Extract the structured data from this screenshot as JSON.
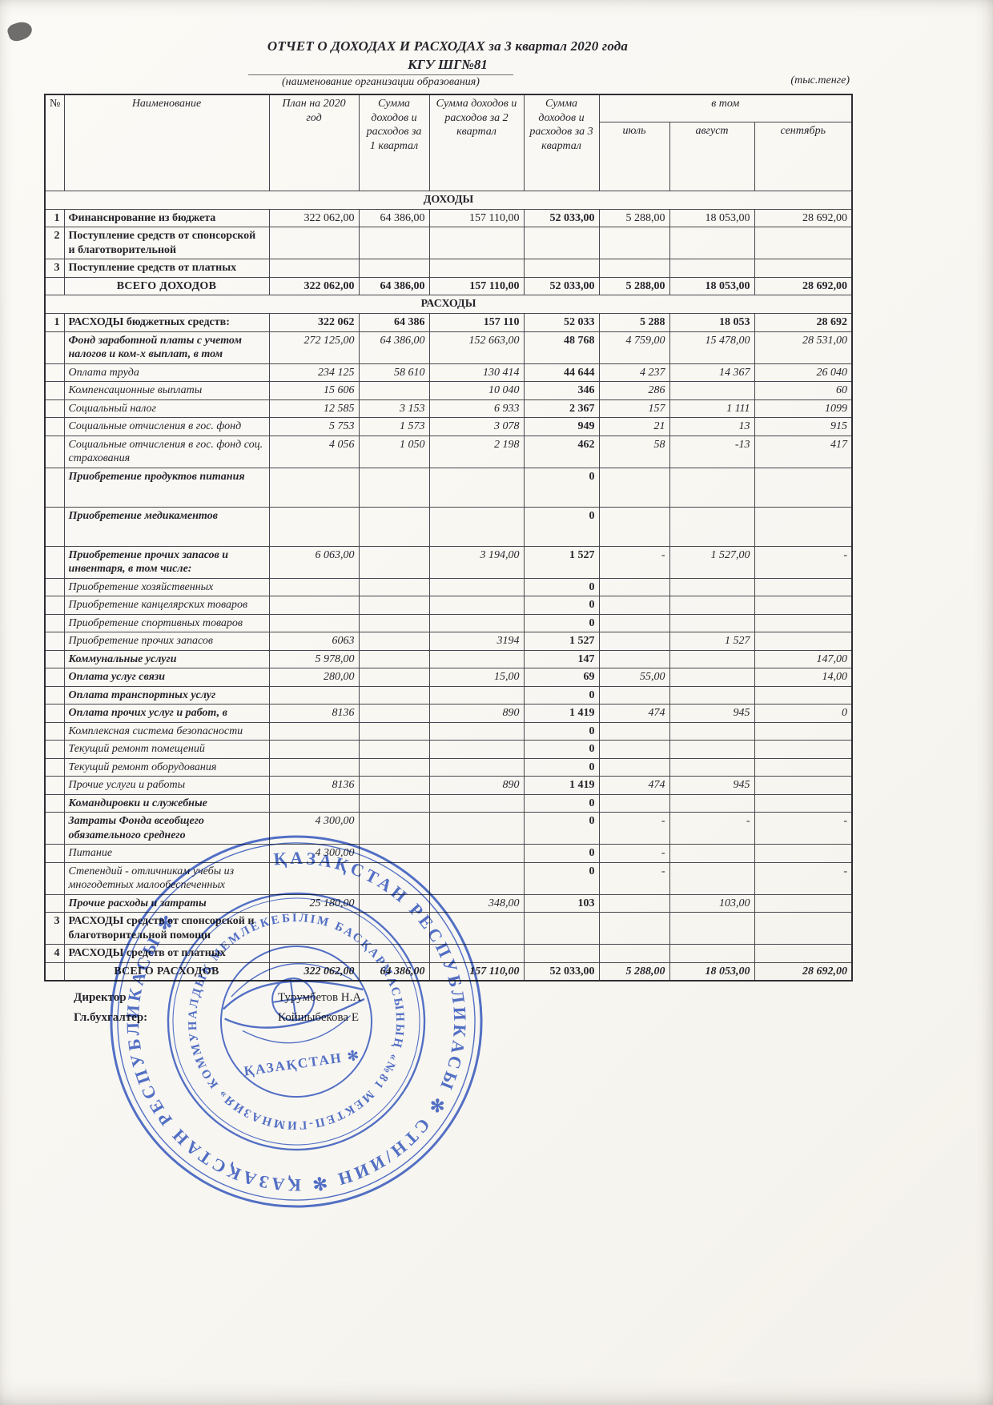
{
  "doc": {
    "title": "ОТЧЕТ О ДОХОДАХ И РАСХОДАХ за 3 квартал 2020 года",
    "org": "КГУ ШГ№81",
    "org_caption": "(наименование организации образования)",
    "units": "(тыс.тенге)"
  },
  "table": {
    "no": "№",
    "h": {
      "name": "Наименование",
      "plan": "План на 2020 год",
      "q1": "Сумма доходов и расходов за 1 квартал",
      "q2": "Сумма доходов и расходов за 2 квартал",
      "q3": "Сумма доходов и расходов за 3 квартал",
      "group": "в том",
      "jul": "июль",
      "aug": "август",
      "sep": "сентябрь"
    },
    "rows": [
      {
        "type": "section",
        "label": "ДОХОДЫ"
      },
      {
        "n": "1",
        "label": "Финансирование из бюджета",
        "ls": "b",
        "vs": "",
        "v": [
          "322 062,00",
          "64 386,00",
          "157 110,00",
          "52 033,00",
          "5 288,00",
          "18 053,00",
          "28 692,00"
        ]
      },
      {
        "n": "2",
        "label": "Поступление средств от спонсорской и благотворительной",
        "ls": "b",
        "vs": "",
        "v": [
          "",
          "",
          "",
          "",
          "",
          "",
          ""
        ]
      },
      {
        "n": "3",
        "label": "Поступление средств от платных",
        "ls": "b",
        "vs": "",
        "v": [
          "",
          "",
          "",
          "",
          "",
          "",
          ""
        ]
      },
      {
        "type": "total",
        "label": "ВСЕГО ДОХОДОВ",
        "vs": "b",
        "v": [
          "322 062,00",
          "64 386,00",
          "157 110,00",
          "52 033,00",
          "5 288,00",
          "18 053,00",
          "28 692,00"
        ]
      },
      {
        "type": "section",
        "label": "РАСХОДЫ"
      },
      {
        "n": "1",
        "label": "РАСХОДЫ бюджетных средств:",
        "ls": "b",
        "vs": "b",
        "v": [
          "322 062",
          "64 386",
          "157 110",
          "52 033",
          "5 288",
          "18 053",
          "28 692"
        ]
      },
      {
        "label": "Фонд заработной платы с учетом налогов и ком-х выплат, в том",
        "ls": "bi",
        "vs": "i",
        "v": [
          "272 125,00",
          "64 386,00",
          "152 663,00",
          "48 768",
          "4 759,00",
          "15 478,00",
          "28 531,00"
        ]
      },
      {
        "label": "Оплата труда",
        "ls": "i",
        "vs": "i",
        "v": [
          "234 125",
          "58 610",
          "130 414",
          "44 644",
          "4 237",
          "14 367",
          "26 040"
        ]
      },
      {
        "label": "Компенсационные выплаты",
        "ls": "i",
        "vs": "i",
        "v": [
          "15 606",
          "",
          "10 040",
          "346",
          "286",
          "",
          "60"
        ]
      },
      {
        "label": "Социальный налог",
        "ls": "i",
        "vs": "i",
        "v": [
          "12 585",
          "3 153",
          "6 933",
          "2 367",
          "157",
          "1 111",
          "1099"
        ]
      },
      {
        "label": "Социальные отчисления в гос. фонд",
        "ls": "i",
        "vs": "i",
        "v": [
          "5 753",
          "1 573",
          "3 078",
          "949",
          "21",
          "13",
          "915"
        ]
      },
      {
        "label": "Социальные отчисления в гос. фонд соц. страхования",
        "ls": "i",
        "vs": "i",
        "v": [
          "4 056",
          "1 050",
          "2 198",
          "462",
          "58",
          "-13",
          "417"
        ]
      },
      {
        "label": "Приобретение продуктов питания",
        "ls": "bi",
        "vs": "i",
        "tall": 1,
        "v": [
          "",
          "",
          "",
          "0",
          "",
          "",
          ""
        ]
      },
      {
        "label": "Приобретение медикаментов",
        "ls": "bi",
        "vs": "i",
        "tall": 1,
        "v": [
          "",
          "",
          "",
          "0",
          "",
          "",
          ""
        ]
      },
      {
        "label": "Приобретение прочих запасов и инвентаря, в том числе:",
        "ls": "bi",
        "vs": "i",
        "v": [
          "6 063,00",
          "",
          "3 194,00",
          "1 527",
          "-",
          "1 527,00",
          "-"
        ]
      },
      {
        "label": "Приобретение хозяйственных",
        "ls": "i",
        "vs": "i",
        "v": [
          "",
          "",
          "",
          "0",
          "",
          "",
          ""
        ]
      },
      {
        "label": "Приобретение канцелярских товаров",
        "ls": "i",
        "vs": "i",
        "v": [
          "",
          "",
          "",
          "0",
          "",
          "",
          ""
        ]
      },
      {
        "label": "Приобретение спортивных товаров",
        "ls": "i",
        "vs": "i",
        "v": [
          "",
          "",
          "",
          "0",
          "",
          "",
          ""
        ]
      },
      {
        "label": "Приобретение прочих запасов",
        "ls": "i",
        "vs": "i",
        "v": [
          "6063",
          "",
          "3194",
          "1 527",
          "",
          "1 527",
          ""
        ]
      },
      {
        "label": "Коммунальные услуги",
        "ls": "bi",
        "vs": "i",
        "v": [
          "5 978,00",
          "",
          "",
          "147",
          "",
          "",
          "147,00"
        ]
      },
      {
        "label": "Оплата услуг связи",
        "ls": "bi",
        "vs": "i",
        "v": [
          "280,00",
          "",
          "15,00",
          "69",
          "55,00",
          "",
          "14,00"
        ]
      },
      {
        "label": "Оплата транспортных услуг",
        "ls": "bi",
        "vs": "i",
        "v": [
          "",
          "",
          "",
          "0",
          "",
          "",
          ""
        ]
      },
      {
        "label": "Оплата прочих услуг и работ, в",
        "ls": "bi",
        "vs": "i",
        "v": [
          "8136",
          "",
          "890",
          "1 419",
          "474",
          "945",
          "0"
        ]
      },
      {
        "label": "Комплексная система безопасности",
        "ls": "i",
        "vs": "i",
        "v": [
          "",
          "",
          "",
          "0",
          "",
          "",
          ""
        ]
      },
      {
        "label": "Текущий ремонт помещений",
        "ls": "i",
        "vs": "i",
        "v": [
          "",
          "",
          "",
          "0",
          "",
          "",
          ""
        ]
      },
      {
        "label": "Текущий ремонт оборудования",
        "ls": "i",
        "vs": "i",
        "v": [
          "",
          "",
          "",
          "0",
          "",
          "",
          ""
        ]
      },
      {
        "label": "Прочие услуги и работы",
        "ls": "i",
        "vs": "i",
        "v": [
          "8136",
          "",
          "890",
          "1 419",
          "474",
          "945",
          ""
        ]
      },
      {
        "label": "Командировки и служебные",
        "ls": "bi",
        "vs": "i",
        "v": [
          "",
          "",
          "",
          "0",
          "",
          "",
          ""
        ]
      },
      {
        "label": "Затраты Фонда всеобщего обязательного среднего",
        "ls": "bi",
        "vs": "i",
        "v": [
          "4 300,00",
          "",
          "",
          "0",
          "-",
          "-",
          "-"
        ]
      },
      {
        "label": "Питание",
        "ls": "i",
        "vs": "i",
        "v": [
          "4 300,00",
          "",
          "",
          "0",
          "-",
          "",
          ""
        ]
      },
      {
        "label": "Степендий - отличникам учебы из многодетных  малообеспеченных",
        "ls": "i",
        "vs": "i",
        "v": [
          "",
          "",
          "",
          "0",
          "-",
          "",
          "-"
        ]
      },
      {
        "label": "Прочие расходы и затраты",
        "ls": "bi",
        "vs": "i",
        "v": [
          "25 180,00",
          "",
          "348,00",
          "103",
          "",
          "103,00",
          ""
        ]
      },
      {
        "n": "3",
        "label": "РАСХОДЫ средств от спонсорской и благотворительной помощи",
        "ls": "b",
        "vs": "",
        "v": [
          "",
          "",
          "",
          "",
          "",
          "",
          ""
        ]
      },
      {
        "n": "4",
        "label": "РАСХОДЫ средств от платных",
        "ls": "b",
        "vs": "",
        "v": [
          "",
          "",
          "",
          "",
          "",
          "",
          ""
        ]
      },
      {
        "type": "total",
        "label": "ВСЕГО РАСХОДОВ",
        "vs": "bi",
        "v": [
          "322 062,00",
          "64 386,00",
          "157 110,00",
          "52 033,00",
          "5 288,00",
          "18 053,00",
          "28 692,00"
        ]
      }
    ]
  },
  "signatures": {
    "s1": {
      "label": "Директор",
      "name": "Турумбетов Н.А"
    },
    "s2": {
      "label": "Гл.бухгалтер:",
      "name": "Койшыбекова Е"
    }
  },
  "stamp": {
    "outer": "ҚАЗАҚСТАН РЕСПУБЛИКАСЫ ✻ СТН/ИИН ✻ ҚАЗАҚСТАН РЕСПУБЛИКАСЫ ✻",
    "middle": "БІЛІМ БАСҚАРМАСЫНЫҢ «№81 МЕКТЕП-ГИМНАЗИЯ» КОММУНАЛДЫҚ МЕМЛЕКЕТТІК МЕКЕМЕСІ",
    "center": "ҚАЗАҚСТАН ✻"
  }
}
